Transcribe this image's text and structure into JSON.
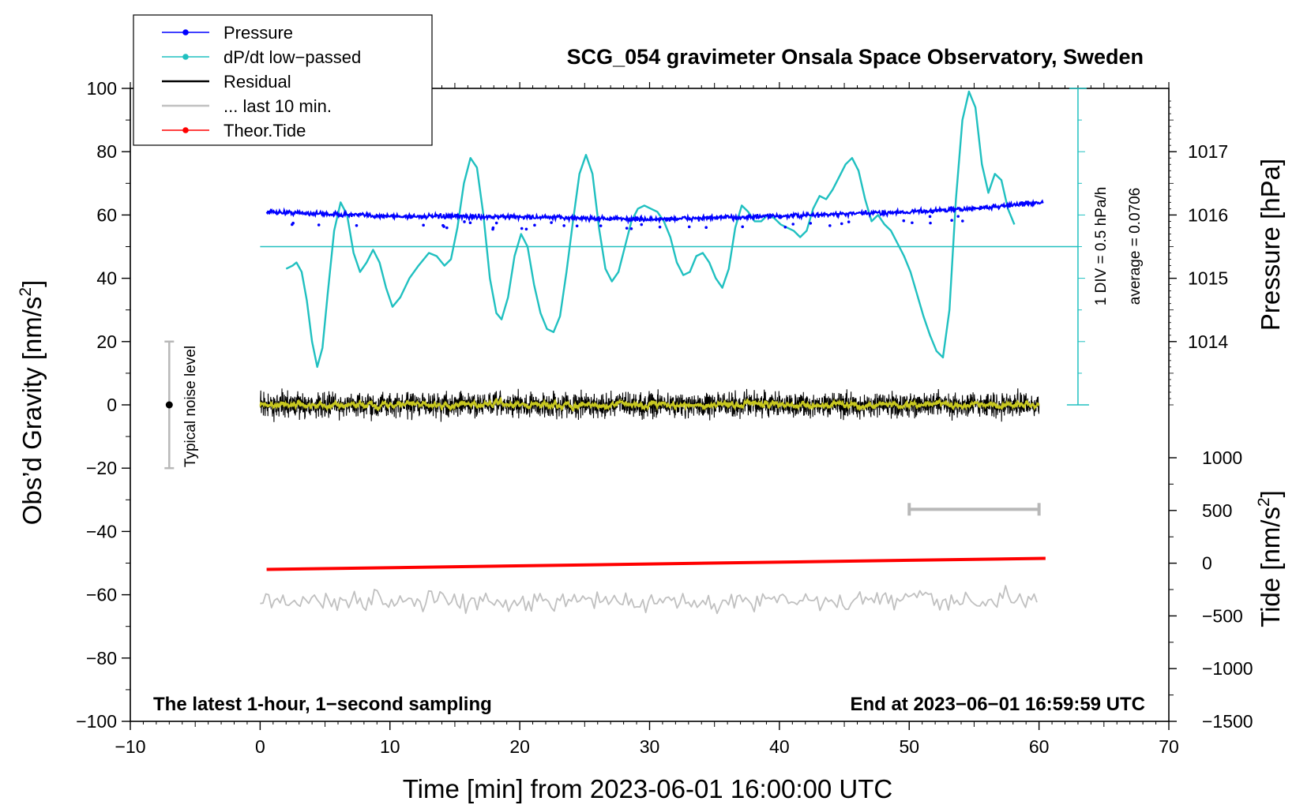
{
  "chart_data": {
    "type": "line",
    "title": "SCG_054 gravimeter Onsala Space Observatory, Sweden",
    "xlabel": "Time [min] from 2023-06-01 16:00:00 UTC",
    "ylabel": "Obs'd Gravity [nm/s²]",
    "ylabel_main": "Obs’d Gravity [nm/s",
    "ylabel_sup": "2",
    "ylabel_end": "]",
    "y2label": "Pressure [hPa]",
    "y3label": "Tide [nm/s²]",
    "y3label_main": "Tide [nm/s",
    "y3label_sup": "2",
    "y3label_end": "]",
    "xlim": [
      -10,
      70
    ],
    "ylim": [
      -100,
      100
    ],
    "x_ticks": [
      "−10",
      "0",
      "10",
      "20",
      "30",
      "40",
      "50",
      "60",
      "70"
    ],
    "x_tick_values": [
      -10,
      0,
      10,
      20,
      30,
      40,
      50,
      60,
      70
    ],
    "y_ticks": [
      "−100",
      "−80",
      "−60",
      "−40",
      "−20",
      "0",
      "20",
      "40",
      "60",
      "80",
      "100"
    ],
    "y_tick_values": [
      -100,
      -80,
      -60,
      -40,
      -20,
      0,
      20,
      40,
      60,
      80,
      100
    ],
    "pressure_axis": {
      "ticks": [
        "1014",
        "1015",
        "1016",
        "1017"
      ],
      "tick_values": [
        1014,
        1015,
        1016,
        1017
      ],
      "mapping": "1 hPa = 20 nm/s² on left axis, 1016 hPa at 60"
    },
    "tide_axis": {
      "ticks": [
        "1000",
        "500",
        "0",
        "−500",
        "−1000",
        "−1500"
      ],
      "tick_values": [
        1000,
        500,
        0,
        -500,
        -1000,
        -1500
      ],
      "range": [
        -1500,
        1000
      ]
    },
    "legend": {
      "position": "top-left",
      "entries": [
        {
          "label": "Pressure",
          "color": "#0000ff",
          "marker": true
        },
        {
          "label": "dP/dt low−passed",
          "color": "#20c0c0",
          "marker": true
        },
        {
          "label": "Residual",
          "color": "#000000",
          "marker": false
        },
        {
          "label": "... last 10 min.",
          "color": "#c0c0c0",
          "marker": false
        },
        {
          "label": "Theor.Tide",
          "color": "#ff0000",
          "marker": true
        }
      ]
    },
    "series": [
      {
        "name": "Pressure",
        "color": "#0000ff",
        "units": "hPa",
        "x_range": [
          0.5,
          60.3
        ],
        "approx_points": [
          [
            0.5,
            1016.05
          ],
          [
            10,
            1015.98
          ],
          [
            20,
            1015.97
          ],
          [
            30,
            1015.93
          ],
          [
            40,
            1015.98
          ],
          [
            50,
            1016.05
          ],
          [
            55,
            1016.1
          ],
          [
            60,
            1016.2
          ]
        ]
      },
      {
        "name": "dP/dt low−passed",
        "color": "#20c0c0",
        "units": "left-axis value",
        "points": [
          [
            2,
            43
          ],
          [
            2.5,
            44
          ],
          [
            2.8,
            45
          ],
          [
            3.2,
            42
          ],
          [
            3.6,
            33
          ],
          [
            4,
            20
          ],
          [
            4.4,
            12
          ],
          [
            4.8,
            18
          ],
          [
            5.2,
            35
          ],
          [
            5.7,
            55
          ],
          [
            6.2,
            64
          ],
          [
            6.7,
            60
          ],
          [
            7.2,
            48
          ],
          [
            7.7,
            42
          ],
          [
            8.2,
            45
          ],
          [
            8.7,
            49
          ],
          [
            9.2,
            45
          ],
          [
            9.7,
            37
          ],
          [
            10.2,
            31
          ],
          [
            10.8,
            34
          ],
          [
            11.5,
            40
          ],
          [
            12.2,
            44
          ],
          [
            13,
            48
          ],
          [
            13.6,
            47
          ],
          [
            14.2,
            44
          ],
          [
            14.7,
            46
          ],
          [
            15.2,
            56
          ],
          [
            15.7,
            70
          ],
          [
            16.2,
            78
          ],
          [
            16.7,
            75
          ],
          [
            17.2,
            60
          ],
          [
            17.7,
            40
          ],
          [
            18.2,
            29
          ],
          [
            18.6,
            27
          ],
          [
            19.1,
            34
          ],
          [
            19.6,
            47
          ],
          [
            20.1,
            54
          ],
          [
            20.6,
            50
          ],
          [
            21.1,
            38
          ],
          [
            21.6,
            29
          ],
          [
            22.1,
            24
          ],
          [
            22.6,
            23
          ],
          [
            23.1,
            28
          ],
          [
            23.6,
            42
          ],
          [
            24.1,
            58
          ],
          [
            24.6,
            73
          ],
          [
            25.1,
            79
          ],
          [
            25.6,
            73
          ],
          [
            26.1,
            56
          ],
          [
            26.6,
            43
          ],
          [
            27.1,
            39
          ],
          [
            27.6,
            42
          ],
          [
            28.1,
            50
          ],
          [
            28.6,
            58
          ],
          [
            29.1,
            62
          ],
          [
            29.6,
            63
          ],
          [
            30.1,
            62
          ],
          [
            30.6,
            61
          ],
          [
            31.1,
            58
          ],
          [
            31.6,
            53
          ],
          [
            32.1,
            45
          ],
          [
            32.6,
            41
          ],
          [
            33.1,
            42
          ],
          [
            33.6,
            47
          ],
          [
            34.1,
            48
          ],
          [
            34.6,
            45
          ],
          [
            35.1,
            40
          ],
          [
            35.6,
            37
          ],
          [
            36.1,
            43
          ],
          [
            36.6,
            56
          ],
          [
            37.1,
            63
          ],
          [
            37.6,
            61
          ],
          [
            38.1,
            58
          ],
          [
            38.6,
            58
          ],
          [
            39.1,
            60
          ],
          [
            39.6,
            59
          ],
          [
            40.1,
            57
          ],
          [
            40.6,
            56
          ],
          [
            41.1,
            55
          ],
          [
            41.6,
            53
          ],
          [
            42.1,
            55
          ],
          [
            42.6,
            62
          ],
          [
            43.1,
            66
          ],
          [
            43.6,
            65
          ],
          [
            44.1,
            68
          ],
          [
            44.6,
            72
          ],
          [
            45.1,
            76
          ],
          [
            45.6,
            78
          ],
          [
            46.1,
            74
          ],
          [
            46.6,
            65
          ],
          [
            47.1,
            58
          ],
          [
            47.6,
            60
          ],
          [
            48.1,
            57
          ],
          [
            48.6,
            55
          ],
          [
            49.1,
            51
          ],
          [
            49.6,
            47
          ],
          [
            50.1,
            42
          ],
          [
            50.6,
            35
          ],
          [
            51.1,
            28
          ],
          [
            51.6,
            22
          ],
          [
            52.1,
            17
          ],
          [
            52.6,
            15
          ],
          [
            53.1,
            30
          ],
          [
            53.6,
            65
          ],
          [
            54.1,
            90
          ],
          [
            54.6,
            99
          ],
          [
            55.1,
            94
          ],
          [
            55.6,
            76
          ],
          [
            56.1,
            67
          ],
          [
            56.6,
            73
          ],
          [
            57.1,
            71
          ],
          [
            57.6,
            62
          ],
          [
            58.1,
            57
          ]
        ]
      },
      {
        "name": "dP/dt average line",
        "color": "#20c0c0",
        "x_range": [
          0,
          63
        ],
        "value": 50
      },
      {
        "name": "Residual",
        "color": "#000000",
        "x_range": [
          0,
          60
        ],
        "mean": 0,
        "amplitude_range": [
          -8,
          8
        ]
      },
      {
        "name": "Residual smoothed",
        "color": "#c8c820",
        "x_range": [
          0,
          60
        ],
        "amplitude_range": [
          -1.5,
          1.5
        ]
      },
      {
        "name": "... last 10 min.",
        "color": "#c0c0c0",
        "x_range": [
          0,
          60
        ],
        "center": -62,
        "amplitude_range": [
          -6.5,
          6.5
        ]
      },
      {
        "name": "Theor.Tide",
        "color": "#ff0000",
        "units": "nm/s² (tide axis)",
        "points": [
          [
            0.5,
            -52
          ],
          [
            60.5,
            -48.5
          ]
        ]
      }
    ],
    "annotations": {
      "noise_label": "Typical noise level",
      "noise_bar": {
        "x": -7,
        "y_center": 0,
        "y_min": -20,
        "y_max": 20
      },
      "div_label": "1 DIV = 0.5 hPa/h",
      "average_label": "average = 0.0706",
      "bottom_left_note": "The latest 1-hour, 1−second sampling",
      "bottom_right_note": "End at 2023−06−01 16:59:59 UTC",
      "window_bar": {
        "x_min": 50,
        "x_max": 60,
        "y": -33
      }
    },
    "grid": false
  }
}
